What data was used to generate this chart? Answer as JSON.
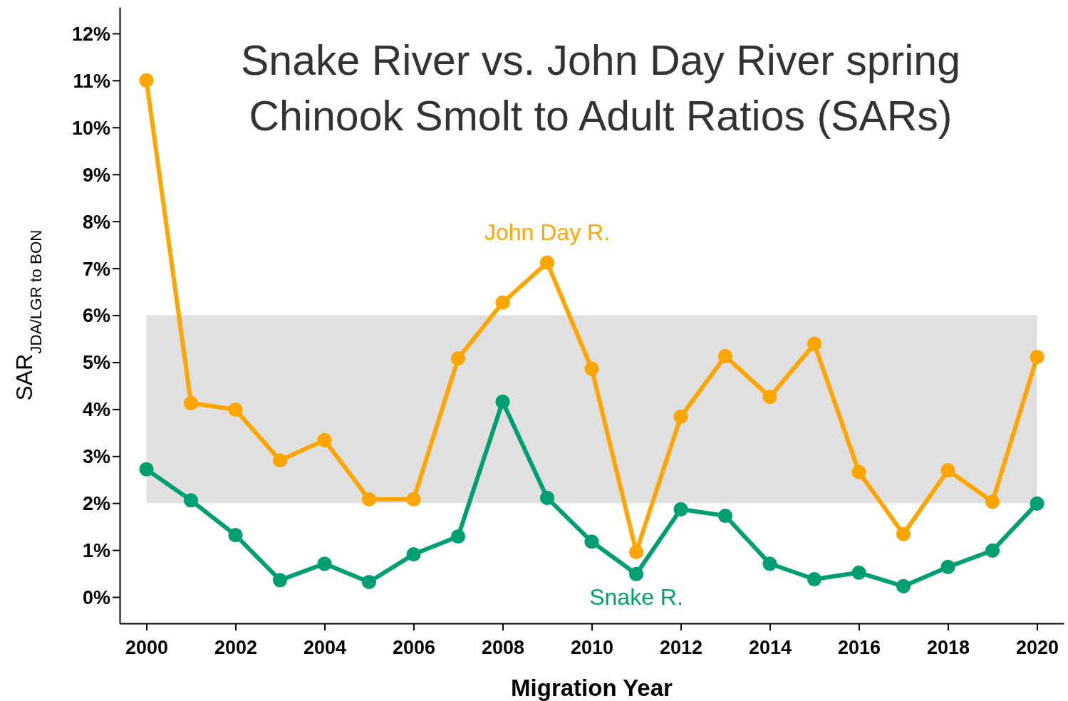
{
  "chart_data": {
    "type": "line",
    "title": "Snake River vs. John Day River spring\nChinook Smolt to Adult Ratios (SARs)",
    "xlabel": "Migration Year",
    "ylabel": "SAR$_{JDA/LGR to BON}$",
    "x": [
      2000,
      2001,
      2002,
      2003,
      2004,
      2005,
      2006,
      2007,
      2008,
      2009,
      2010,
      2011,
      2012,
      2013,
      2014,
      2015,
      2016,
      2017,
      2018,
      2019,
      2020
    ],
    "series": [
      {
        "name": "John Day R.",
        "color": "#ffa500",
        "values": [
          11.0,
          4.13,
          3.99,
          2.91,
          3.34,
          2.08,
          2.08,
          5.08,
          6.27,
          7.12,
          4.86,
          0.96,
          3.84,
          5.13,
          4.26,
          5.39,
          2.66,
          1.34,
          2.7,
          2.03,
          5.11
        ]
      },
      {
        "name": "Snake R.",
        "color": "#009e73",
        "values": [
          2.72,
          2.06,
          1.32,
          0.36,
          0.71,
          0.32,
          0.91,
          1.29,
          4.16,
          2.11,
          1.18,
          0.49,
          1.87,
          1.73,
          0.71,
          0.38,
          0.52,
          0.23,
          0.64,
          0.99,
          1.99
        ]
      }
    ],
    "xlim": [
      1999.4,
      2020.6
    ],
    "xticks": [
      2000,
      2002,
      2004,
      2006,
      2008,
      2010,
      2012,
      2014,
      2016,
      2018,
      2020
    ],
    "ylim": [
      -0.56,
      12.56
    ],
    "yticks": [
      {
        "value": 0,
        "label": "0%"
      },
      {
        "value": 1,
        "label": "1%"
      },
      {
        "value": 2,
        "label": "2%"
      },
      {
        "value": 3,
        "label": "3%"
      },
      {
        "value": 4,
        "label": "4%"
      },
      {
        "value": 5,
        "label": "5%"
      },
      {
        "value": 6,
        "label": "6%"
      },
      {
        "value": 7,
        "label": "7%"
      },
      {
        "value": 8,
        "label": "8%"
      },
      {
        "value": 9,
        "label": "9%"
      },
      {
        "value": 10,
        "label": "10%"
      },
      {
        "value": 11,
        "label": "11%"
      },
      {
        "value": 12,
        "label": "12%"
      }
    ],
    "bands": [
      {
        "axis": "y",
        "from": 2,
        "to": 6,
        "color": "#e0e0e0"
      }
    ],
    "marker": "circle",
    "line_style": "solid",
    "legend": false,
    "grid": false
  }
}
